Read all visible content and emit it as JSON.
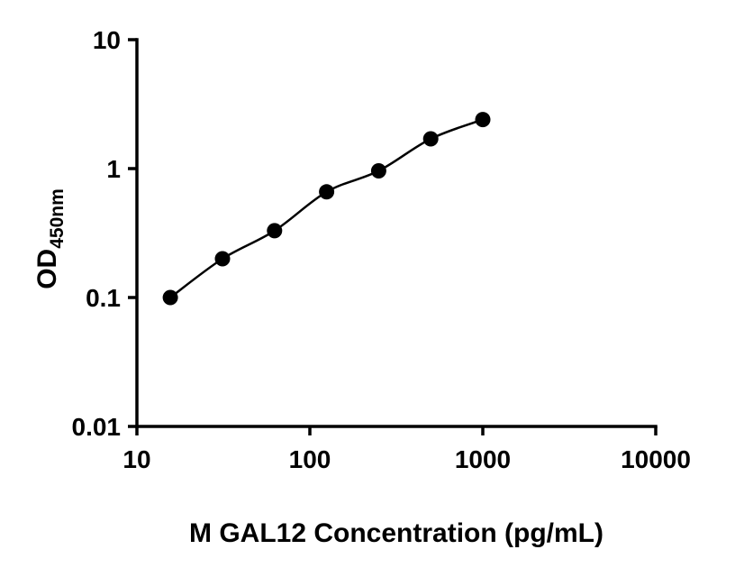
{
  "figure": {
    "background": "#ffffff"
  },
  "chart_data": {
    "type": "line",
    "title": "",
    "xlabel": "M GAL12 Concentration (pg/mL)",
    "ylabel_main": "OD",
    "ylabel_sub": "450nm",
    "xscale": "log",
    "yscale": "log",
    "xlim": [
      10,
      10000
    ],
    "ylim": [
      0.01,
      10
    ],
    "x_ticks": [
      10,
      100,
      1000,
      10000
    ],
    "x_tick_labels": [
      "10",
      "100",
      "1000",
      "10000"
    ],
    "y_ticks": [
      10,
      1,
      0.1,
      0.01
    ],
    "y_tick_labels": [
      "10",
      "1",
      "0.1",
      "0.01"
    ],
    "x": [
      15.6,
      31.25,
      62.5,
      125,
      250,
      500,
      1000
    ],
    "y": [
      0.1,
      0.2,
      0.33,
      0.66,
      0.96,
      1.7,
      2.4
    ],
    "grid": false,
    "legend": false,
    "marker": "filled-circle",
    "marker_radius": 8.5,
    "marker_color": "#000000",
    "line_color": "#000000",
    "line_width": 2.5,
    "axis_color": "#000000",
    "axis_width": 3.5
  }
}
